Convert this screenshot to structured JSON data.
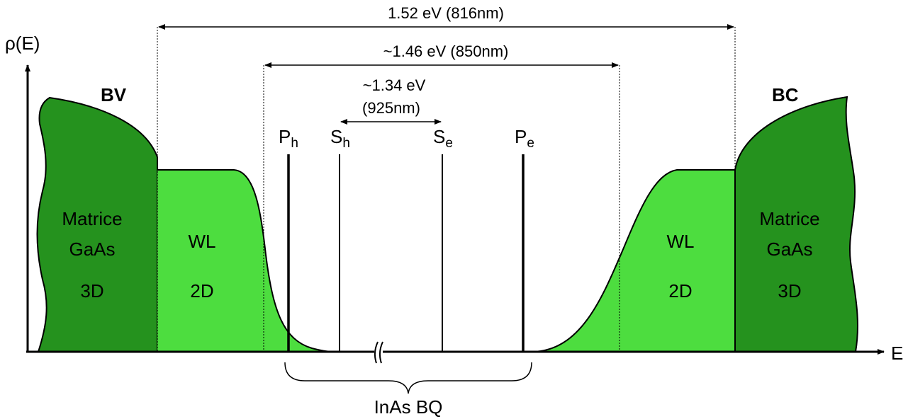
{
  "axes": {
    "y_label": "ρ(E)",
    "x_label": "E"
  },
  "bands": {
    "valence": "BV",
    "conduction": "BC"
  },
  "regions": {
    "matrix_left": {
      "line1": "Matrice",
      "line2": "GaAs",
      "line3": "3D"
    },
    "wl_left": {
      "line1": "WL",
      "line2": "2D"
    },
    "wl_right": {
      "line1": "WL",
      "line2": "2D"
    },
    "matrix_right": {
      "line1": "Matrice",
      "line2": "GaAs",
      "line3": "3D"
    }
  },
  "levels": {
    "ph": {
      "base": "P",
      "sub": "h"
    },
    "sh": {
      "base": "S",
      "sub": "h"
    },
    "se": {
      "base": "S",
      "sub": "e"
    },
    "pe": {
      "base": "P",
      "sub": "e"
    }
  },
  "energies": {
    "gaas_gap": "1.52 eV (816nm)",
    "wl_gap": "~1.46 eV (850nm)",
    "qd_gap_line1": "~1.34 eV",
    "qd_gap_line2": "(925nm)"
  },
  "bracket_label": "InAs BQ",
  "colors": {
    "matrix": "#25921e",
    "wetting_layer": "#4ddd3f",
    "line": "#000000"
  }
}
